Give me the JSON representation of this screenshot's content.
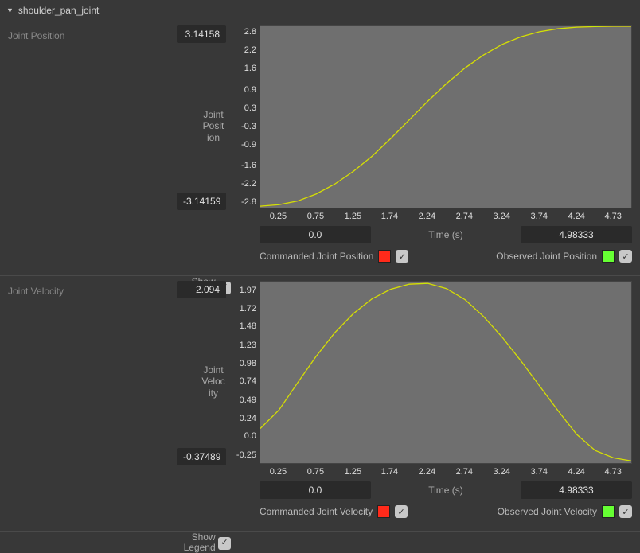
{
  "header": {
    "title": "shoulder_pan_joint"
  },
  "panels": [
    {
      "key": "position",
      "title": "Joint Position",
      "ylabel": "Joint Position",
      "yrange_max": "3.14158",
      "yrange_min": "-3.14159",
      "show_legend_label": "Show Legend",
      "xaxis_label": "Time (s)",
      "xrange_min": "0.0",
      "xrange_max": "4.98333",
      "legend_commanded": "Commanded Joint Position",
      "legend_observed": "Observed Joint Position",
      "swatch_commanded": "#ff2a1a",
      "swatch_observed": "#66ff33",
      "chart": {
        "bgcolor": "#6f6f6f",
        "grid_color": "#777777",
        "ylim": [
          -3.0,
          3.0
        ],
        "xlim": [
          0,
          4.98333
        ],
        "yticks": [
          2.8,
          2.2,
          1.6,
          0.9,
          0.3,
          -0.3,
          -0.9,
          -1.6,
          -2.2,
          -2.8
        ],
        "ytick_labels": [
          "2.8",
          "2.2",
          "1.6",
          "0.9",
          "0.3",
          "-0.3",
          "-0.9",
          "-1.6",
          "-2.2",
          "-2.8"
        ],
        "xticks": [
          0.25,
          0.75,
          1.25,
          1.74,
          2.24,
          2.74,
          3.24,
          3.74,
          4.24,
          4.73
        ],
        "xtick_labels": [
          "0.25",
          "0.75",
          "1.25",
          "1.74",
          "2.24",
          "2.74",
          "3.24",
          "3.74",
          "4.24",
          "4.73"
        ],
        "series": [
          {
            "color": "#ff2a1a",
            "width": 1.3,
            "x": [
              0,
              0.25,
              0.5,
              0.75,
              1.0,
              1.25,
              1.5,
              1.75,
              2.0,
              2.25,
              2.5,
              2.75,
              3.0,
              3.25,
              3.5,
              3.75,
              4.0,
              4.25,
              4.5,
              4.75,
              4.9833
            ],
            "y": [
              -2.95,
              -2.9,
              -2.78,
              -2.55,
              -2.22,
              -1.8,
              -1.3,
              -0.72,
              -0.1,
              0.52,
              1.1,
              1.62,
              2.05,
              2.4,
              2.65,
              2.82,
              2.92,
              2.97,
              2.99,
              3.0,
              3.0
            ]
          },
          {
            "color": "#c7e60b",
            "width": 1.3,
            "x": [
              0,
              0.25,
              0.5,
              0.75,
              1.0,
              1.25,
              1.5,
              1.75,
              2.0,
              2.25,
              2.5,
              2.75,
              3.0,
              3.25,
              3.5,
              3.75,
              4.0,
              4.25,
              4.5,
              4.75,
              4.9833
            ],
            "y": [
              -2.95,
              -2.9,
              -2.78,
              -2.55,
              -2.22,
              -1.8,
              -1.3,
              -0.72,
              -0.1,
              0.52,
              1.1,
              1.62,
              2.05,
              2.4,
              2.65,
              2.82,
              2.92,
              2.97,
              2.99,
              3.0,
              3.0
            ]
          }
        ]
      }
    },
    {
      "key": "velocity",
      "title": "Joint Velocity",
      "ylabel": "Joint Velocity",
      "yrange_max": "2.094",
      "yrange_min": "-0.37489",
      "show_legend_label": "Show Legend",
      "xaxis_label": "Time (s)",
      "xrange_min": "0.0",
      "xrange_max": "4.98333",
      "legend_commanded": "Commanded Joint Velocity",
      "legend_observed": "Observed Joint Velocity",
      "swatch_commanded": "#ff2a1a",
      "swatch_observed": "#66ff33",
      "chart": {
        "bgcolor": "#6f6f6f",
        "grid_color": "#777777",
        "ylim": [
          -0.37,
          2.094
        ],
        "xlim": [
          0,
          4.98333
        ],
        "yticks": [
          1.97,
          1.72,
          1.48,
          1.23,
          0.98,
          0.74,
          0.49,
          0.24,
          0.0,
          -0.25
        ],
        "ytick_labels": [
          "1.97",
          "1.72",
          "1.48",
          "1.23",
          "0.98",
          "0.74",
          "0.49",
          "0.24",
          "0.0",
          "-0.25"
        ],
        "xticks": [
          0.25,
          0.75,
          1.25,
          1.74,
          2.24,
          2.74,
          3.24,
          3.74,
          4.24,
          4.73
        ],
        "xtick_labels": [
          "0.25",
          "0.75",
          "1.25",
          "1.74",
          "2.24",
          "2.74",
          "3.24",
          "3.74",
          "4.24",
          "4.73"
        ],
        "series": [
          {
            "color": "#ff2a1a",
            "width": 1.3,
            "x": [
              0,
              0.25,
              0.5,
              0.75,
              1.0,
              1.25,
              1.5,
              1.75,
              2.0,
              2.25,
              2.5,
              2.75,
              3.0,
              3.25,
              3.5,
              3.75,
              4.0,
              4.25,
              4.5,
              4.75,
              4.9833
            ],
            "y": [
              0.1,
              0.35,
              0.72,
              1.08,
              1.4,
              1.66,
              1.86,
              1.99,
              2.06,
              2.07,
              2.0,
              1.85,
              1.62,
              1.34,
              1.02,
              0.68,
              0.34,
              0.02,
              -0.2,
              -0.3,
              -0.34
            ]
          },
          {
            "color": "#c7e60b",
            "width": 1.3,
            "x": [
              0,
              0.25,
              0.5,
              0.75,
              1.0,
              1.25,
              1.5,
              1.75,
              2.0,
              2.25,
              2.5,
              2.75,
              3.0,
              3.25,
              3.5,
              3.75,
              4.0,
              4.25,
              4.5,
              4.75,
              4.9833
            ],
            "y": [
              0.1,
              0.35,
              0.72,
              1.08,
              1.4,
              1.66,
              1.86,
              1.99,
              2.06,
              2.07,
              2.0,
              1.85,
              1.62,
              1.34,
              1.02,
              0.68,
              0.34,
              0.02,
              -0.2,
              -0.3,
              -0.34
            ]
          }
        ]
      }
    }
  ]
}
